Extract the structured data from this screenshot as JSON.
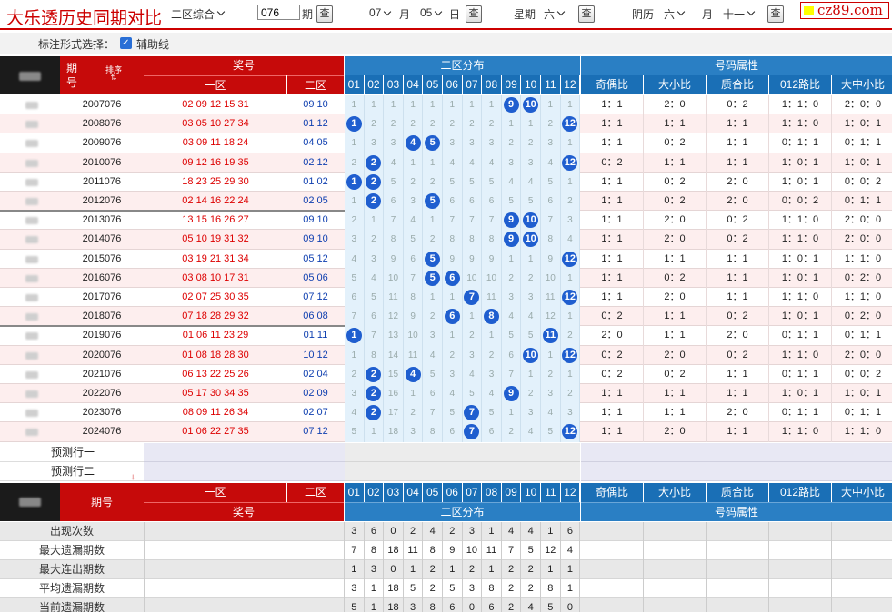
{
  "header": {
    "title": "大乐透历史同期对比",
    "zone_select": "二区综合",
    "period_input": "076",
    "period_unit": "期",
    "query_label": "查",
    "month": "07",
    "month_unit": "月",
    "day": "05",
    "day_unit": "日",
    "weekday_label": "星期",
    "weekday": "六",
    "lunar_label": "阴历",
    "lunar_day": "六",
    "lunar_month_unit": "月",
    "lunar_month": "十一",
    "logo": "cz89.com"
  },
  "options": {
    "label": "标注形式选择：",
    "aux_label": "辅助线",
    "aux_checked": true
  },
  "table": {
    "period_col": "期号",
    "sort_label": "排序",
    "prize_label": "奖号",
    "zone1": "一区",
    "zone2": "二区",
    "dist_label": "二区分布",
    "attr_label": "号码属性",
    "dist_cols": [
      "01",
      "02",
      "03",
      "04",
      "05",
      "06",
      "07",
      "08",
      "09",
      "10",
      "11",
      "12"
    ],
    "attr_cols": [
      "奇偶比",
      "大小比",
      "质合比",
      "012路比",
      "大中小比"
    ],
    "rows": [
      {
        "period": "2007076",
        "z1": "02 09 12 15 31",
        "z2": "09 10",
        "dist": [
          "1",
          "1",
          "1",
          "1",
          "1",
          "1",
          "1",
          "1",
          "9",
          "10",
          "1",
          "1"
        ],
        "hits": [
          9,
          10
        ],
        "attr": [
          "1：1",
          "2：0",
          "0：2",
          "1：1：0",
          "2：0：0"
        ]
      },
      {
        "period": "2008076",
        "z1": "03 05 10 27 34",
        "z2": "01 12",
        "dist": [
          "1",
          "2",
          "2",
          "2",
          "2",
          "2",
          "2",
          "2",
          "1",
          "1",
          "2",
          "12"
        ],
        "hits": [
          1,
          12
        ],
        "attr": [
          "1：1",
          "1：1",
          "1：1",
          "1：1：0",
          "1：0：1"
        ]
      },
      {
        "period": "2009076",
        "z1": "03 09 11 18 24",
        "z2": "04 05",
        "dist": [
          "1",
          "3",
          "3",
          "4",
          "5",
          "3",
          "3",
          "3",
          "2",
          "2",
          "3",
          "1"
        ],
        "hits": [
          4,
          5
        ],
        "attr": [
          "1：1",
          "0：2",
          "1：1",
          "0：1：1",
          "0：1：1"
        ]
      },
      {
        "period": "2010076",
        "z1": "09 12 16 19 35",
        "z2": "02 12",
        "dist": [
          "2",
          "2",
          "4",
          "1",
          "1",
          "4",
          "4",
          "4",
          "3",
          "3",
          "4",
          "12"
        ],
        "hits": [
          2,
          12
        ],
        "attr": [
          "0：2",
          "1：1",
          "1：1",
          "1：0：1",
          "1：0：1"
        ]
      },
      {
        "period": "2011076",
        "z1": "18 23 25 29 30",
        "z2": "01 02",
        "dist": [
          "1",
          "2",
          "5",
          "2",
          "2",
          "5",
          "5",
          "5",
          "4",
          "4",
          "5",
          "1"
        ],
        "hits": [
          1,
          2
        ],
        "attr": [
          "1：1",
          "0：2",
          "2：0",
          "1：0：1",
          "0：0：2"
        ]
      },
      {
        "period": "2012076",
        "z1": "02 14 16 22 24",
        "z2": "02 05",
        "dist": [
          "1",
          "2",
          "6",
          "3",
          "5",
          "6",
          "6",
          "6",
          "5",
          "5",
          "6",
          "2"
        ],
        "hits": [
          2,
          5
        ],
        "attr": [
          "1：1",
          "0：2",
          "2：0",
          "0：0：2",
          "0：1：1"
        ]
      },
      {
        "period": "2013076",
        "z1": "13 15 16 26 27",
        "z2": "09 10",
        "dist": [
          "2",
          "1",
          "7",
          "4",
          "1",
          "7",
          "7",
          "7",
          "9",
          "10",
          "7",
          "3"
        ],
        "hits": [
          9,
          10
        ],
        "attr": [
          "1：1",
          "2：0",
          "0：2",
          "1：1：0",
          "2：0：0"
        ]
      },
      {
        "period": "2014076",
        "z1": "05 10 19 31 32",
        "z2": "09 10",
        "dist": [
          "3",
          "2",
          "8",
          "5",
          "2",
          "8",
          "8",
          "8",
          "9",
          "10",
          "8",
          "4"
        ],
        "hits": [
          9,
          10
        ],
        "attr": [
          "1：1",
          "2：0",
          "0：2",
          "1：1：0",
          "2：0：0"
        ]
      },
      {
        "period": "2015076",
        "z1": "03 19 21 31 34",
        "z2": "05 12",
        "dist": [
          "4",
          "3",
          "9",
          "6",
          "5",
          "9",
          "9",
          "9",
          "1",
          "1",
          "9",
          "12"
        ],
        "hits": [
          5,
          12
        ],
        "attr": [
          "1：1",
          "1：1",
          "1：1",
          "1：0：1",
          "1：1：0"
        ]
      },
      {
        "period": "2016076",
        "z1": "03 08 10 17 31",
        "z2": "05 06",
        "dist": [
          "5",
          "4",
          "10",
          "7",
          "5",
          "6",
          "10",
          "10",
          "2",
          "2",
          "10",
          "1"
        ],
        "hits": [
          5,
          6
        ],
        "attr": [
          "1：1",
          "0：2",
          "1：1",
          "1：0：1",
          "0：2：0"
        ]
      },
      {
        "period": "2017076",
        "z1": "02 07 25 30 35",
        "z2": "07 12",
        "dist": [
          "6",
          "5",
          "11",
          "8",
          "1",
          "1",
          "7",
          "11",
          "3",
          "3",
          "11",
          "12"
        ],
        "hits": [
          7,
          12
        ],
        "attr": [
          "1：1",
          "2：0",
          "1：1",
          "1：1：0",
          "1：1：0"
        ]
      },
      {
        "period": "2018076",
        "z1": "07 18 28 29 32",
        "z2": "06 08",
        "dist": [
          "7",
          "6",
          "12",
          "9",
          "2",
          "6",
          "1",
          "8",
          "4",
          "4",
          "12",
          "1"
        ],
        "hits": [
          6,
          8
        ],
        "attr": [
          "0：2",
          "1：1",
          "0：2",
          "1：0：1",
          "0：2：0"
        ]
      },
      {
        "period": "2019076",
        "z1": "01 06 11 23 29",
        "z2": "01 11",
        "dist": [
          "1",
          "7",
          "13",
          "10",
          "3",
          "1",
          "2",
          "1",
          "5",
          "5",
          "11",
          "2"
        ],
        "hits": [
          1,
          11
        ],
        "attr": [
          "2：0",
          "1：1",
          "2：0",
          "0：1：1",
          "0：1：1"
        ]
      },
      {
        "period": "2020076",
        "z1": "01 08 18 28 30",
        "z2": "10 12",
        "dist": [
          "1",
          "8",
          "14",
          "11",
          "4",
          "2",
          "3",
          "2",
          "6",
          "10",
          "1",
          "12"
        ],
        "hits": [
          10,
          12
        ],
        "attr": [
          "0：2",
          "2：0",
          "0：2",
          "1：1：0",
          "2：0：0"
        ]
      },
      {
        "period": "2021076",
        "z1": "06 13 22 25 26",
        "z2": "02 04",
        "dist": [
          "2",
          "2",
          "15",
          "4",
          "5",
          "3",
          "4",
          "3",
          "7",
          "1",
          "2",
          "1"
        ],
        "hits": [
          2,
          4
        ],
        "attr": [
          "0：2",
          "0：2",
          "1：1",
          "0：1：1",
          "0：0：2"
        ]
      },
      {
        "period": "2022076",
        "z1": "05 17 30 34 35",
        "z2": "02 09",
        "dist": [
          "3",
          "2",
          "16",
          "1",
          "6",
          "4",
          "5",
          "4",
          "9",
          "2",
          "3",
          "2"
        ],
        "hits": [
          2,
          9
        ],
        "attr": [
          "1：1",
          "1：1",
          "1：1",
          "1：0：1",
          "1：0：1"
        ]
      },
      {
        "period": "2023076",
        "z1": "08 09 11 26 34",
        "z2": "02 07",
        "dist": [
          "4",
          "2",
          "17",
          "2",
          "7",
          "5",
          "7",
          "5",
          "1",
          "3",
          "4",
          "3"
        ],
        "hits": [
          2,
          7
        ],
        "attr": [
          "1：1",
          "1：1",
          "2：0",
          "0：1：1",
          "0：1：1"
        ]
      },
      {
        "period": "2024076",
        "z1": "01 06 22 27 35",
        "z2": "07 12",
        "dist": [
          "5",
          "1",
          "18",
          "3",
          "8",
          "6",
          "7",
          "6",
          "2",
          "4",
          "5",
          "12"
        ],
        "hits": [
          7,
          12
        ],
        "attr": [
          "1：1",
          "2：0",
          "1：1",
          "1：1：0",
          "1：1：0"
        ]
      }
    ],
    "predict": [
      "预测行一",
      "预测行二"
    ],
    "stats": [
      {
        "label": "出现次数",
        "values": [
          "3",
          "6",
          "0",
          "2",
          "4",
          "2",
          "3",
          "1",
          "4",
          "4",
          "1",
          "6"
        ]
      },
      {
        "label": "最大遗漏期数",
        "values": [
          "7",
          "8",
          "18",
          "11",
          "8",
          "9",
          "10",
          "11",
          "7",
          "5",
          "12",
          "4"
        ]
      },
      {
        "label": "最大连出期数",
        "values": [
          "1",
          "3",
          "0",
          "1",
          "2",
          "1",
          "2",
          "1",
          "2",
          "2",
          "1",
          "1"
        ]
      },
      {
        "label": "平均遗漏期数",
        "values": [
          "3",
          "1",
          "18",
          "5",
          "2",
          "5",
          "3",
          "8",
          "2",
          "2",
          "8",
          "1"
        ]
      },
      {
        "label": "当前遗漏期数",
        "values": [
          "5",
          "1",
          "18",
          "3",
          "8",
          "6",
          "0",
          "6",
          "2",
          "4",
          "5",
          "0"
        ]
      }
    ]
  }
}
